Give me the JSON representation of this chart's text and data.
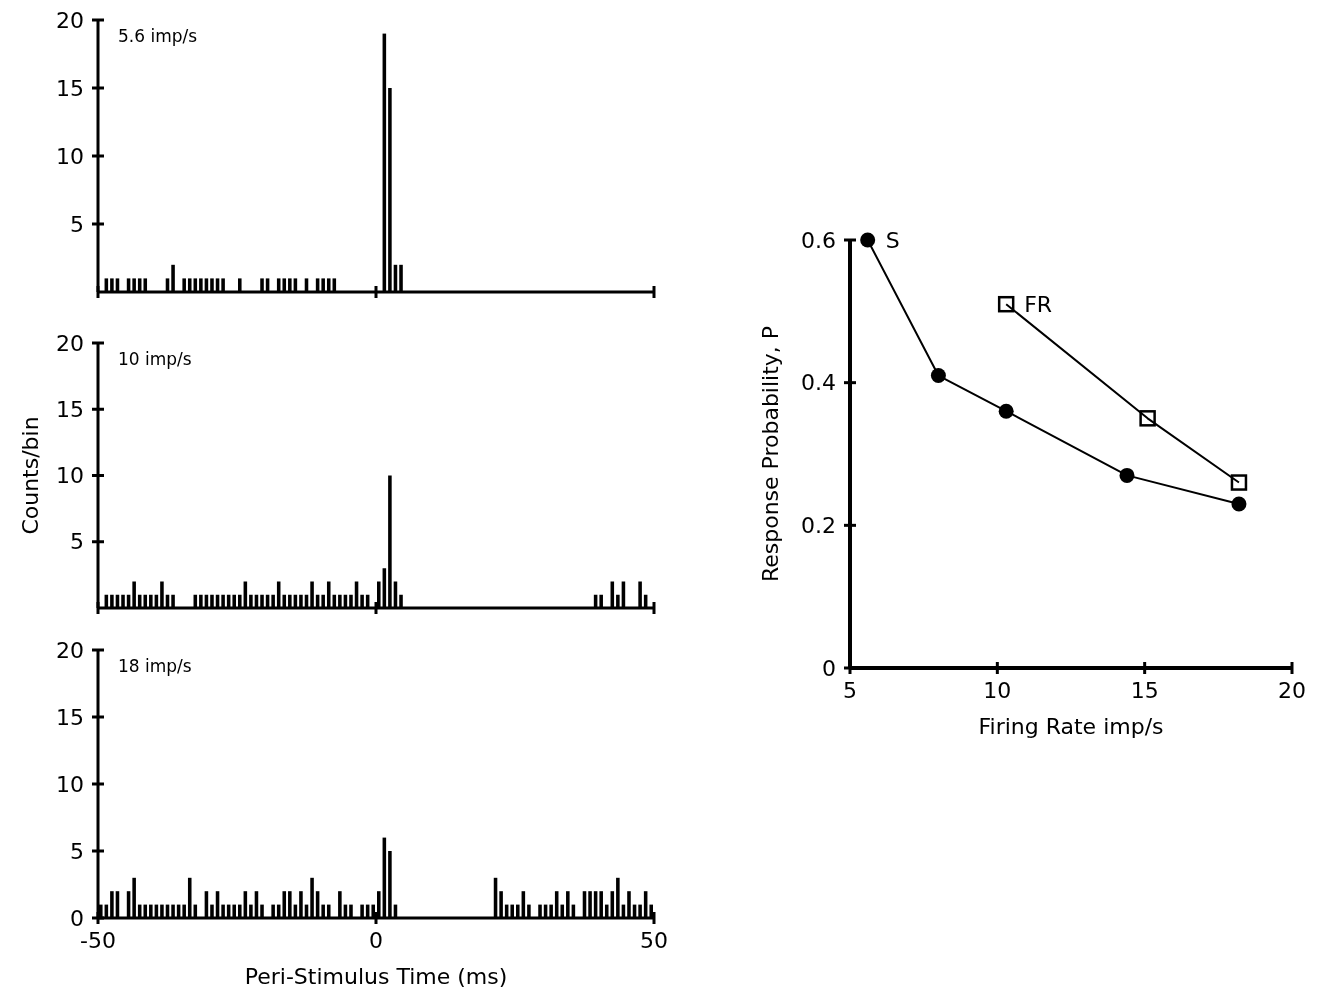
{
  "chart_data": [
    {
      "type": "histogram",
      "bins": [
        -50,
        -49,
        -48,
        -47,
        -46,
        -45,
        -44,
        -43,
        -42,
        -41,
        -40,
        -39,
        -38,
        -37,
        -36,
        -35,
        -34,
        -33,
        -32,
        -31,
        -30,
        -29,
        -28,
        -27,
        -26,
        -25,
        -24,
        -23,
        -22,
        -21,
        -20,
        -19,
        -18,
        -17,
        -16,
        -15,
        -14,
        -13,
        -12,
        -11,
        -10,
        -9,
        -8,
        -7,
        -6,
        -5,
        -4,
        -3,
        -2,
        -1,
        0,
        1,
        2,
        3,
        4,
        5,
        6,
        7,
        8,
        9,
        10,
        11,
        12,
        13,
        14,
        15,
        16,
        17,
        18,
        19,
        20,
        21,
        22,
        23,
        24,
        25,
        26,
        27,
        28,
        29,
        30,
        31,
        32,
        33,
        34,
        35,
        36,
        37,
        38,
        39,
        40,
        41,
        42,
        43,
        44,
        45,
        46,
        47,
        48,
        49,
        50
      ],
      "values": [
        0,
        1,
        1,
        1,
        0,
        1,
        1,
        1,
        1,
        0,
        0,
        0,
        1,
        2,
        0,
        1,
        1,
        1,
        1,
        1,
        1,
        1,
        1,
        0,
        0,
        1,
        0,
        0,
        0,
        1,
        1,
        0,
        1,
        1,
        1,
        1,
        0,
        1,
        0,
        1,
        1,
        1,
        1,
        0,
        0,
        0,
        0,
        0,
        0,
        0,
        0,
        19,
        15,
        2,
        2,
        0,
        0,
        0,
        0,
        0,
        0,
        0,
        0,
        0,
        0,
        0,
        0,
        0,
        0,
        0,
        0,
        0,
        0,
        0,
        0,
        0,
        0,
        0,
        0,
        0,
        0,
        0,
        0,
        0,
        0,
        0,
        0,
        0,
        0,
        0,
        0,
        0,
        0,
        0,
        0,
        0,
        0,
        0,
        0,
        0
      ],
      "color": "#000000",
      "xlim": [
        -50,
        50
      ],
      "xticks": [
        {
          "value": -50,
          "label": null
        },
        {
          "value": 0,
          "label": null
        },
        {
          "value": 50,
          "label": null
        }
      ],
      "ylim": [
        0,
        20
      ],
      "yticks": [
        5,
        10,
        15,
        20
      ],
      "tick_labels": "y",
      "annotations": [
        "5.6 imp/s"
      ]
    },
    {
      "type": "histogram",
      "bins": [
        -50,
        -49,
        -48,
        -47,
        -46,
        -45,
        -44,
        -43,
        -42,
        -41,
        -40,
        -39,
        -38,
        -37,
        -36,
        -35,
        -34,
        -33,
        -32,
        -31,
        -30,
        -29,
        -28,
        -27,
        -26,
        -25,
        -24,
        -23,
        -22,
        -21,
        -20,
        -19,
        -18,
        -17,
        -16,
        -15,
        -14,
        -13,
        -12,
        -11,
        -10,
        -9,
        -8,
        -7,
        -6,
        -5,
        -4,
        -3,
        -2,
        -1,
        0,
        1,
        2,
        3,
        4,
        5,
        6,
        7,
        8,
        9,
        10,
        11,
        12,
        13,
        14,
        15,
        16,
        17,
        18,
        19,
        20,
        21,
        22,
        23,
        24,
        25,
        26,
        27,
        28,
        29,
        30,
        31,
        32,
        33,
        34,
        35,
        36,
        37,
        38,
        39,
        40,
        41,
        42,
        43,
        44,
        45,
        46,
        47,
        48,
        49,
        50
      ],
      "values": [
        0,
        1,
        1,
        1,
        1,
        1,
        2,
        1,
        1,
        1,
        1,
        2,
        1,
        1,
        0,
        0,
        0,
        1,
        1,
        1,
        1,
        1,
        1,
        1,
        1,
        1,
        2,
        1,
        1,
        1,
        1,
        1,
        2,
        1,
        1,
        1,
        1,
        1,
        2,
        1,
        1,
        2,
        1,
        1,
        1,
        1,
        2,
        1,
        1,
        0,
        2,
        3,
        10,
        2,
        1,
        0,
        0,
        0,
        0,
        0,
        0,
        0,
        0,
        0,
        0,
        0,
        0,
        0,
        0,
        0,
        0,
        0,
        0,
        0,
        0,
        0,
        0,
        0,
        0,
        0,
        0,
        0,
        0,
        0,
        0,
        0,
        0,
        0,
        0,
        1,
        1,
        0,
        2,
        1,
        2,
        0,
        0,
        2,
        1,
        0
      ],
      "color": "#000000",
      "xlim": [
        -50,
        50
      ],
      "xticks": [
        {
          "value": -50,
          "label": null
        },
        {
          "value": 0,
          "label": null
        },
        {
          "value": 50,
          "label": null
        }
      ],
      "ylim": [
        0,
        20
      ],
      "yticks": [
        5,
        10,
        15,
        20
      ],
      "tick_labels": "y",
      "ylabel": "Counts/bin",
      "annotations": [
        "10 imp/s"
      ]
    },
    {
      "type": "histogram",
      "bins": [
        -50,
        -49,
        -48,
        -47,
        -46,
        -45,
        -44,
        -43,
        -42,
        -41,
        -40,
        -39,
        -38,
        -37,
        -36,
        -35,
        -34,
        -33,
        -32,
        -31,
        -30,
        -29,
        -28,
        -27,
        -26,
        -25,
        -24,
        -23,
        -22,
        -21,
        -20,
        -19,
        -18,
        -17,
        -16,
        -15,
        -14,
        -13,
        -12,
        -11,
        -10,
        -9,
        -8,
        -7,
        -6,
        -5,
        -4,
        -3,
        -2,
        -1,
        0,
        1,
        2,
        3,
        4,
        5,
        6,
        7,
        8,
        9,
        10,
        11,
        12,
        13,
        14,
        15,
        16,
        17,
        18,
        19,
        20,
        21,
        22,
        23,
        24,
        25,
        26,
        27,
        28,
        29,
        30,
        31,
        32,
        33,
        34,
        35,
        36,
        37,
        38,
        39,
        40,
        41,
        42,
        43,
        44,
        45,
        46,
        47,
        48,
        49,
        50
      ],
      "values": [
        1,
        1,
        2,
        2,
        0,
        2,
        3,
        1,
        1,
        1,
        1,
        1,
        1,
        1,
        1,
        1,
        3,
        1,
        0,
        2,
        1,
        2,
        1,
        1,
        1,
        1,
        2,
        1,
        2,
        1,
        0,
        1,
        1,
        2,
        2,
        1,
        2,
        1,
        3,
        2,
        1,
        1,
        0,
        2,
        1,
        1,
        0,
        1,
        1,
        1,
        2,
        6,
        5,
        1,
        0,
        0,
        0,
        0,
        0,
        0,
        0,
        0,
        0,
        0,
        0,
        0,
        0,
        0,
        0,
        0,
        0,
        3,
        2,
        1,
        1,
        1,
        2,
        1,
        0,
        1,
        1,
        1,
        2,
        1,
        2,
        1,
        0,
        2,
        2,
        2,
        2,
        1,
        2,
        3,
        1,
        2,
        1,
        1,
        2,
        1
      ],
      "color": "#000000",
      "xlim": [
        -50,
        50
      ],
      "xticks": [
        -50,
        0,
        50
      ],
      "ylim": [
        0,
        20
      ],
      "yticks": [
        0,
        5,
        10,
        15,
        20
      ],
      "xlabel": "Peri-Stimulus Time (ms)",
      "annotations": [
        "18 imp/s"
      ]
    },
    {
      "type": "line",
      "xlabel": "Firing Rate imp/s",
      "ylabel": "Response Probability, P",
      "xlim": [
        5,
        20
      ],
      "xticks": [
        5,
        10,
        15,
        20
      ],
      "ylim": [
        0,
        0.6
      ],
      "yticks": [
        0,
        0.2,
        0.4,
        0.6
      ],
      "series": [
        {
          "name": "S",
          "color": "#000000",
          "marker": "circle",
          "x": [
            5.6,
            8,
            10.3,
            14.4,
            18.2
          ],
          "values": [
            0.6,
            0.41,
            0.36,
            0.27,
            0.23
          ]
        },
        {
          "name": "FR",
          "color": "#000000",
          "marker": "square",
          "x": [
            10.3,
            15.1,
            18.2
          ],
          "values": [
            0.51,
            0.35,
            0.26
          ]
        }
      ]
    }
  ]
}
